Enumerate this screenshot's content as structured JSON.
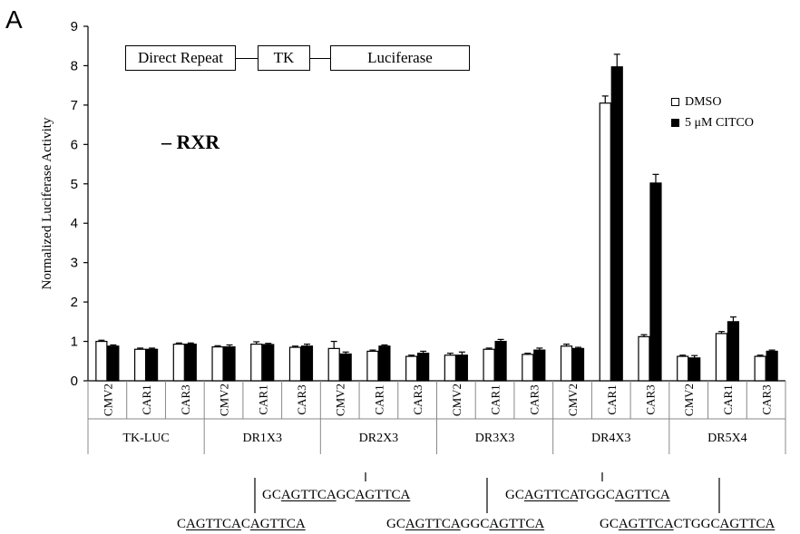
{
  "panel_label": "A",
  "construct": {
    "segments": [
      "Direct Repeat",
      "TK",
      "Luciferase"
    ]
  },
  "condition_label": "– RXR",
  "colors": {
    "dmso": "#ffffff",
    "citco": "#000000",
    "edge": "#000000"
  },
  "sequences": [
    {
      "id": "dr1",
      "parts": [
        [
          "C",
          false
        ],
        [
          "AGTTCA",
          true
        ],
        [
          "C",
          false
        ],
        [
          "AGTTCA",
          true
        ]
      ]
    },
    {
      "id": "dr2",
      "parts": [
        [
          "GC",
          false
        ],
        [
          "AGTTCA",
          true
        ],
        [
          "GC",
          false
        ],
        [
          "AGTTCA",
          true
        ]
      ]
    },
    {
      "id": "dr3",
      "parts": [
        [
          "GC",
          false
        ],
        [
          "AGTTCA",
          true
        ],
        [
          "GGC",
          false
        ],
        [
          "AGTTCA",
          true
        ]
      ]
    },
    {
      "id": "dr4",
      "parts": [
        [
          "GC",
          false
        ],
        [
          "AGTTCA",
          true
        ],
        [
          "TGGC",
          false
        ],
        [
          "AGTTCA",
          true
        ]
      ]
    },
    {
      "id": "dr5",
      "parts": [
        [
          "GC",
          false
        ],
        [
          "AGTTCA",
          true
        ],
        [
          "CTGGC",
          false
        ],
        [
          "AGTTCA",
          true
        ]
      ]
    }
  ],
  "chart_data": {
    "type": "bar",
    "title": "",
    "xlabel": "",
    "ylabel": "Normalized Luciferase Activity",
    "ylim": [
      0,
      9
    ],
    "yticks": [
      0,
      1,
      2,
      3,
      4,
      5,
      6,
      7,
      8,
      9
    ],
    "grid": false,
    "legend_position": "top-right",
    "groups": [
      "TK-LUC",
      "DR1X3",
      "DR2X3",
      "DR3X3",
      "DR4X3",
      "DR5X4"
    ],
    "categories": [
      "CMV2",
      "CAR1",
      "CAR3",
      "CMV2",
      "CAR1",
      "CAR3",
      "CMV2",
      "CAR1",
      "CAR3",
      "CMV2",
      "CAR1",
      "CAR3",
      "CMV2",
      "CAR1",
      "CAR3",
      "CMV2",
      "CAR1",
      "CAR3"
    ],
    "series": [
      {
        "name": "DMSO",
        "color": "#ffffff",
        "values": [
          1.0,
          0.8,
          0.93,
          0.86,
          0.93,
          0.85,
          0.82,
          0.75,
          0.62,
          0.65,
          0.8,
          0.67,
          0.88,
          7.05,
          1.12,
          0.62,
          1.2,
          0.62
        ],
        "errors": [
          0.03,
          0.03,
          0.03,
          0.03,
          0.06,
          0.03,
          0.18,
          0.03,
          0.03,
          0.05,
          0.03,
          0.03,
          0.05,
          0.18,
          0.05,
          0.03,
          0.05,
          0.03
        ]
      },
      {
        "name": "5 μM CITCO",
        "color": "#000000",
        "values": [
          0.88,
          0.8,
          0.93,
          0.86,
          0.92,
          0.88,
          0.68,
          0.88,
          0.7,
          0.65,
          1.0,
          0.78,
          0.82,
          7.97,
          5.02,
          0.58,
          1.5,
          0.75
        ],
        "errors": [
          0.03,
          0.03,
          0.03,
          0.05,
          0.03,
          0.05,
          0.05,
          0.03,
          0.05,
          0.08,
          0.05,
          0.05,
          0.03,
          0.32,
          0.22,
          0.06,
          0.12,
          0.03
        ]
      }
    ]
  }
}
